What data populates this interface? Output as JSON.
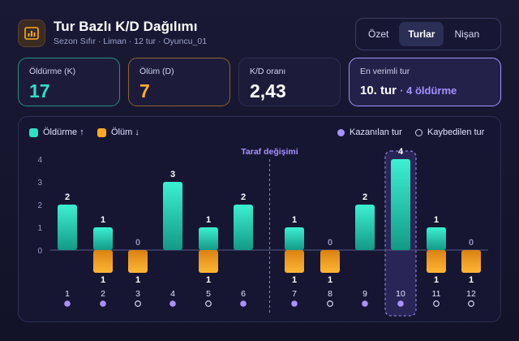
{
  "header": {
    "title": "Tur Bazlı K/D Dağılımı",
    "subtitle": "Sezon Sıfır · Liman · 12 tur · Oyuncu_01",
    "app_icon": "bar-chart-icon"
  },
  "tabs": [
    {
      "label": "Özet",
      "active": false
    },
    {
      "label": "Turlar",
      "active": true
    },
    {
      "label": "Nişan",
      "active": false
    }
  ],
  "stats": {
    "kills_label": "Öldürme (K)",
    "kills_value": "17",
    "deaths_label": "Ölüm (D)",
    "deaths_value": "7",
    "kd_label": "K/D oranı",
    "kd_value": "2,43",
    "best_label": "En verimli tur",
    "best_round": "10. tur",
    "best_detail": "· 4 öldürme"
  },
  "legend": {
    "kills": "Öldürme ↑",
    "deaths": "Ölüm ↓",
    "won": "Kazanılan tur",
    "lost": "Kaybedilen tur"
  },
  "colors": {
    "kills": "#2ee0c4",
    "deaths": "#ffaa22",
    "accent": "#a892ff"
  },
  "chart_data": {
    "type": "bar",
    "categories": [
      "1",
      "2",
      "3",
      "4",
      "5",
      "6",
      "7",
      "8",
      "9",
      "10",
      "11",
      "12"
    ],
    "series": [
      {
        "name": "Öldürme",
        "values": [
          2,
          1,
          0,
          3,
          1,
          2,
          1,
          0,
          2,
          4,
          1,
          0
        ]
      },
      {
        "name": "Ölüm",
        "values": [
          0,
          1,
          1,
          0,
          1,
          0,
          1,
          1,
          0,
          0,
          1,
          1
        ]
      }
    ],
    "round_won": [
      true,
      true,
      false,
      true,
      false,
      true,
      true,
      false,
      true,
      true,
      false,
      false
    ],
    "y_ticks": [
      0,
      1,
      2,
      3,
      4
    ],
    "ylim": [
      0,
      4
    ],
    "annotation": "Taraf değişimi",
    "annotation_after_category": "6",
    "highlight_category": "10",
    "grid": false,
    "legend_position": "top"
  }
}
